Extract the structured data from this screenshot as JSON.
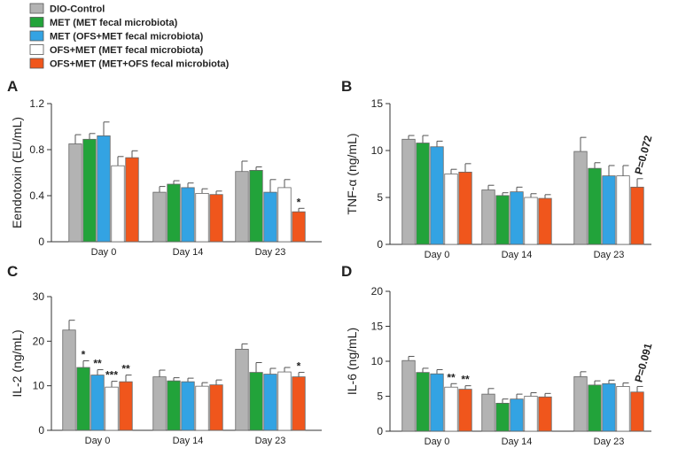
{
  "legend": [
    {
      "label": "DIO-Control",
      "color": "#b3b3b3"
    },
    {
      "label": "MET (MET fecal microbiota)",
      "color": "#22a33a"
    },
    {
      "label": "MET (OFS+MET fecal microbiota)",
      "color": "#33a3e3"
    },
    {
      "label": "OFS+MET (MET fecal microbiota)",
      "color": "#ffffff"
    },
    {
      "label": "OFS+MET (MET+OFS fecal microbiota)",
      "color": "#f0561c"
    }
  ],
  "chart_data": [
    {
      "panel": "A",
      "type": "bar",
      "ylabel": "Eendotoxin (EU/mL)",
      "ylim": [
        0,
        1.2
      ],
      "yticks": [
        0,
        0.4,
        0.8,
        1.2
      ],
      "ytick_labels": [
        "0",
        "0.4",
        "0.8",
        "1.2"
      ],
      "categories": [
        "Day 0",
        "Day 14",
        "Day 23"
      ],
      "series": [
        {
          "name": "DIO-Control",
          "values": [
            0.85,
            0.43,
            0.61
          ],
          "errors": [
            0.08,
            0.05,
            0.09
          ]
        },
        {
          "name": "MET (MET fecal microbiota)",
          "values": [
            0.89,
            0.5,
            0.62
          ],
          "errors": [
            0.05,
            0.03,
            0.03
          ]
        },
        {
          "name": "MET (OFS+MET fecal microbiota)",
          "values": [
            0.92,
            0.47,
            0.43
          ],
          "errors": [
            0.12,
            0.04,
            0.11
          ]
        },
        {
          "name": "OFS+MET (MET fecal microbiota)",
          "values": [
            0.66,
            0.42,
            0.47
          ],
          "errors": [
            0.08,
            0.04,
            0.07
          ]
        },
        {
          "name": "OFS+MET (MET+OFS fecal microbiota)",
          "values": [
            0.73,
            0.41,
            0.26
          ],
          "errors": [
            0.06,
            0.03,
            0.03
          ]
        }
      ],
      "annotations": [
        {
          "category": 2,
          "series": 4,
          "text": "*",
          "rotate": false
        }
      ]
    },
    {
      "panel": "B",
      "type": "bar",
      "ylabel": "TNF-α (ng/mL)",
      "ylim": [
        0,
        15
      ],
      "yticks": [
        0,
        5,
        10,
        15
      ],
      "ytick_labels": [
        "0",
        "5",
        "10",
        "15"
      ],
      "categories": [
        "Day 0",
        "Day 14",
        "Day 23"
      ],
      "series": [
        {
          "name": "DIO-Control",
          "values": [
            11.2,
            5.8,
            9.9
          ],
          "errors": [
            0.4,
            0.5,
            1.5
          ]
        },
        {
          "name": "MET (MET fecal microbiota)",
          "values": [
            10.8,
            5.2,
            8.1
          ],
          "errors": [
            0.8,
            0.3,
            0.6
          ]
        },
        {
          "name": "MET (OFS+MET fecal microbiota)",
          "values": [
            10.4,
            5.6,
            7.3
          ],
          "errors": [
            0.6,
            0.5,
            1.1
          ]
        },
        {
          "name": "OFS+MET (MET fecal microbiota)",
          "values": [
            7.5,
            5.0,
            7.3
          ],
          "errors": [
            0.5,
            0.4,
            1.1
          ]
        },
        {
          "name": "OFS+MET (MET+OFS fecal microbiota)",
          "values": [
            7.7,
            4.9,
            6.1
          ],
          "errors": [
            0.9,
            0.4,
            0.9
          ]
        }
      ],
      "annotations": [
        {
          "category": 2,
          "series": 4,
          "text": "P=0.072",
          "rotate": true
        }
      ]
    },
    {
      "panel": "C",
      "type": "bar",
      "ylabel": "IL-2 (ng/mL)",
      "ylim": [
        0,
        30
      ],
      "yticks": [
        0,
        10,
        20,
        30
      ],
      "ytick_labels": [
        "0",
        "10",
        "20",
        "30"
      ],
      "categories": [
        "Day 0",
        "Day 14",
        "Day 23"
      ],
      "series": [
        {
          "name": "DIO-Control",
          "values": [
            22.5,
            12.0,
            18.2
          ],
          "errors": [
            2.2,
            1.5,
            1.2
          ]
        },
        {
          "name": "MET (MET fecal microbiota)",
          "values": [
            14.1,
            11.1,
            13.0
          ],
          "errors": [
            1.5,
            0.7,
            2.2
          ]
        },
        {
          "name": "MET (OFS+MET fecal microbiota)",
          "values": [
            12.4,
            10.9,
            12.6
          ],
          "errors": [
            1.2,
            0.8,
            1.3
          ]
        },
        {
          "name": "OFS+MET (MET fecal microbiota)",
          "values": [
            9.7,
            9.9,
            13.1
          ],
          "errors": [
            1.3,
            0.8,
            1.0
          ]
        },
        {
          "name": "OFS+MET (MET+OFS fecal microbiota)",
          "values": [
            10.9,
            10.2,
            12.0
          ],
          "errors": [
            1.5,
            1.1,
            1.0
          ]
        }
      ],
      "annotations": [
        {
          "category": 0,
          "series": 1,
          "text": "*",
          "rotate": false
        },
        {
          "category": 0,
          "series": 2,
          "text": "**",
          "rotate": false
        },
        {
          "category": 0,
          "series": 3,
          "text": "***",
          "rotate": false
        },
        {
          "category": 0,
          "series": 4,
          "text": "**",
          "rotate": false
        },
        {
          "category": 2,
          "series": 4,
          "text": "*",
          "rotate": false
        }
      ]
    },
    {
      "panel": "D",
      "type": "bar",
      "ylabel": "IL-6 (ng/mL)",
      "ylim": [
        0,
        20
      ],
      "yticks": [
        0,
        5,
        10,
        15,
        20
      ],
      "ytick_labels": [
        "0",
        "5",
        "10",
        "15",
        "20"
      ],
      "categories": [
        "Day 0",
        "Day 14",
        "Day 23"
      ],
      "series": [
        {
          "name": "DIO-Control",
          "values": [
            10.1,
            5.3,
            7.8
          ],
          "errors": [
            0.6,
            0.8,
            0.7
          ]
        },
        {
          "name": "MET (MET fecal microbiota)",
          "values": [
            8.4,
            4.0,
            6.6
          ],
          "errors": [
            0.6,
            0.6,
            0.6
          ]
        },
        {
          "name": "MET (OFS+MET fecal microbiota)",
          "values": [
            8.2,
            4.6,
            6.8
          ],
          "errors": [
            0.6,
            0.7,
            0.5
          ]
        },
        {
          "name": "OFS+MET (MET fecal microbiota)",
          "values": [
            6.3,
            5.0,
            6.4
          ],
          "errors": [
            0.5,
            0.5,
            0.5
          ]
        },
        {
          "name": "OFS+MET (MET+OFS fecal microbiota)",
          "values": [
            6.0,
            4.9,
            5.6
          ],
          "errors": [
            0.5,
            0.5,
            0.8
          ]
        }
      ],
      "annotations": [
        {
          "category": 0,
          "series": 3,
          "text": "**",
          "rotate": false
        },
        {
          "category": 0,
          "series": 4,
          "text": "**",
          "rotate": false
        },
        {
          "category": 2,
          "series": 4,
          "text": "P=0.091",
          "rotate": true
        }
      ]
    }
  ]
}
